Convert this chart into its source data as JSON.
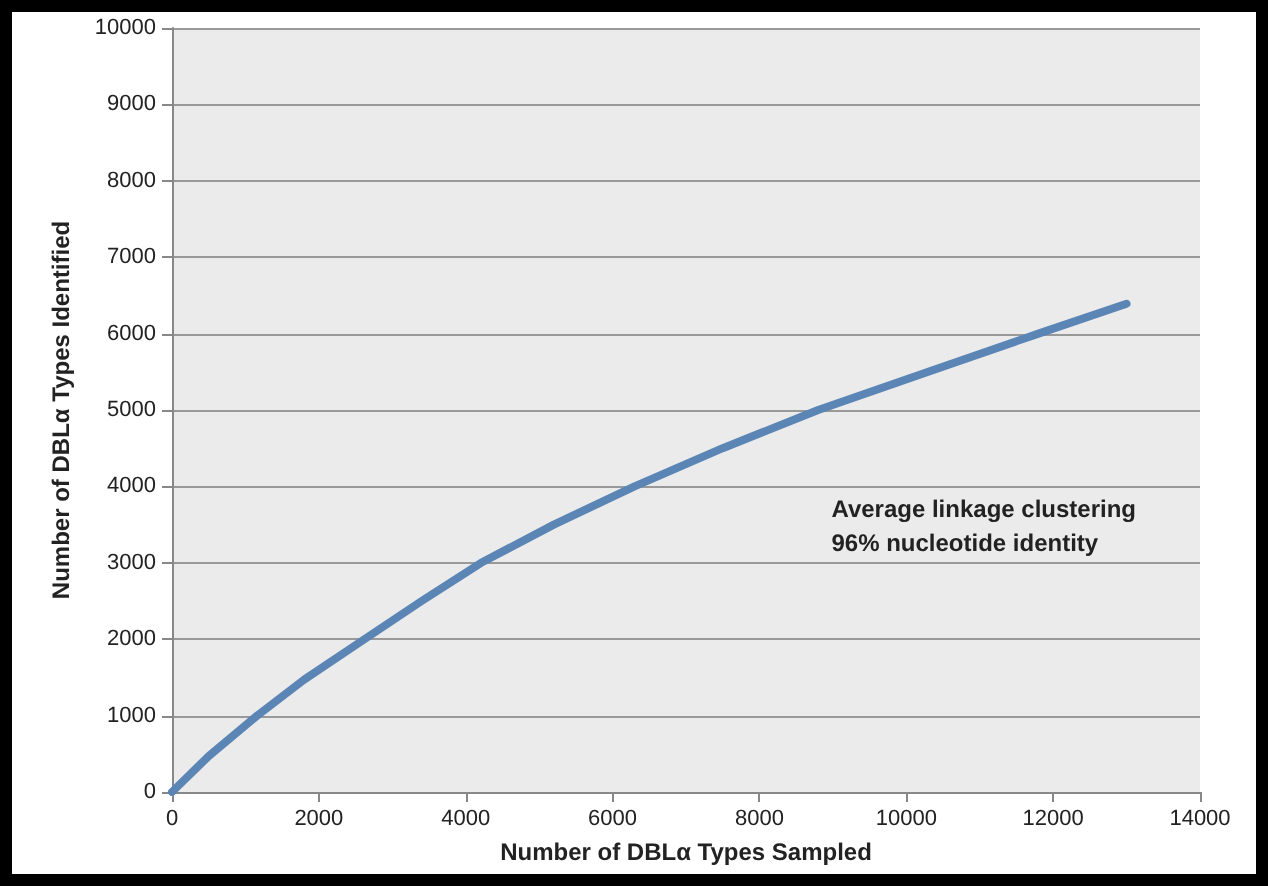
{
  "chart_data": {
    "type": "line",
    "xlabel": "Number of DBLα Types Sampled",
    "ylabel": "Number of DBLα Types Identified",
    "x": [
      0,
      500,
      1160,
      1800,
      2620,
      3400,
      4210,
      5200,
      6300,
      7500,
      8800,
      10300,
      11800,
      13000
    ],
    "series": [
      {
        "color": "#5b85b5",
        "values": [
          0,
          470,
          1000,
          1470,
          2000,
          2500,
          3000,
          3500,
          4000,
          4500,
          5000,
          5500,
          6000,
          6390
        ]
      }
    ],
    "xlim": [
      0,
      14000
    ],
    "xticks": [
      0,
      2000,
      4000,
      6000,
      8000,
      10000,
      12000,
      14000
    ],
    "ylim": [
      0,
      10000
    ],
    "yticks": [
      0,
      1000,
      2000,
      3000,
      4000,
      5000,
      6000,
      7000,
      8000,
      9000,
      10000
    ],
    "grid": "y",
    "marker": "none",
    "line_style": "solid",
    "annotations": [
      "Average linkage clustering\n96% nucleotide identity"
    ]
  }
}
